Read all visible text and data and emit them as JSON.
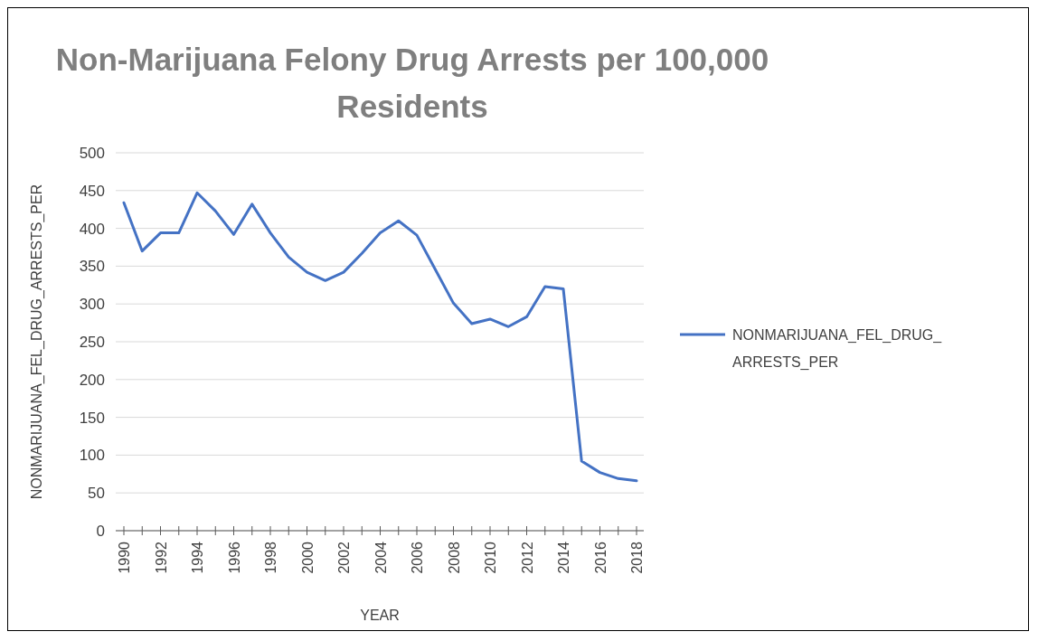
{
  "chart_data": {
    "type": "line",
    "title": "Non-Marijuana Felony Drug Arrests per 100,000 Residents",
    "xlabel": "YEAR",
    "ylabel": "NONMARIJUANA_FEL_DRUG_ARRESTS_PER",
    "categories": [
      "1990",
      null,
      "1992",
      null,
      "1994",
      null,
      "1996",
      null,
      "1998",
      null,
      "2000",
      null,
      "2002",
      null,
      "2004",
      null,
      "2006",
      null,
      "2008",
      null,
      "2010",
      null,
      "2012",
      null,
      "2014",
      null,
      "2016",
      null,
      "2018"
    ],
    "series": [
      {
        "name": "NONMARIJUANA_FEL_DRUG_ARRESTS_PER",
        "color": "#4472c4",
        "values": [
          434,
          370,
          394,
          394,
          447,
          423,
          392,
          432,
          394,
          362,
          342,
          331,
          342,
          367,
          394,
          410,
          391,
          346,
          301,
          274,
          280,
          270,
          283,
          323,
          320,
          92,
          77,
          69,
          66
        ]
      }
    ],
    "ylim": [
      0,
      500
    ],
    "yticks": [
      0,
      50,
      100,
      150,
      200,
      250,
      300,
      350,
      400,
      450,
      500
    ],
    "grid": "y",
    "legend": "right"
  }
}
